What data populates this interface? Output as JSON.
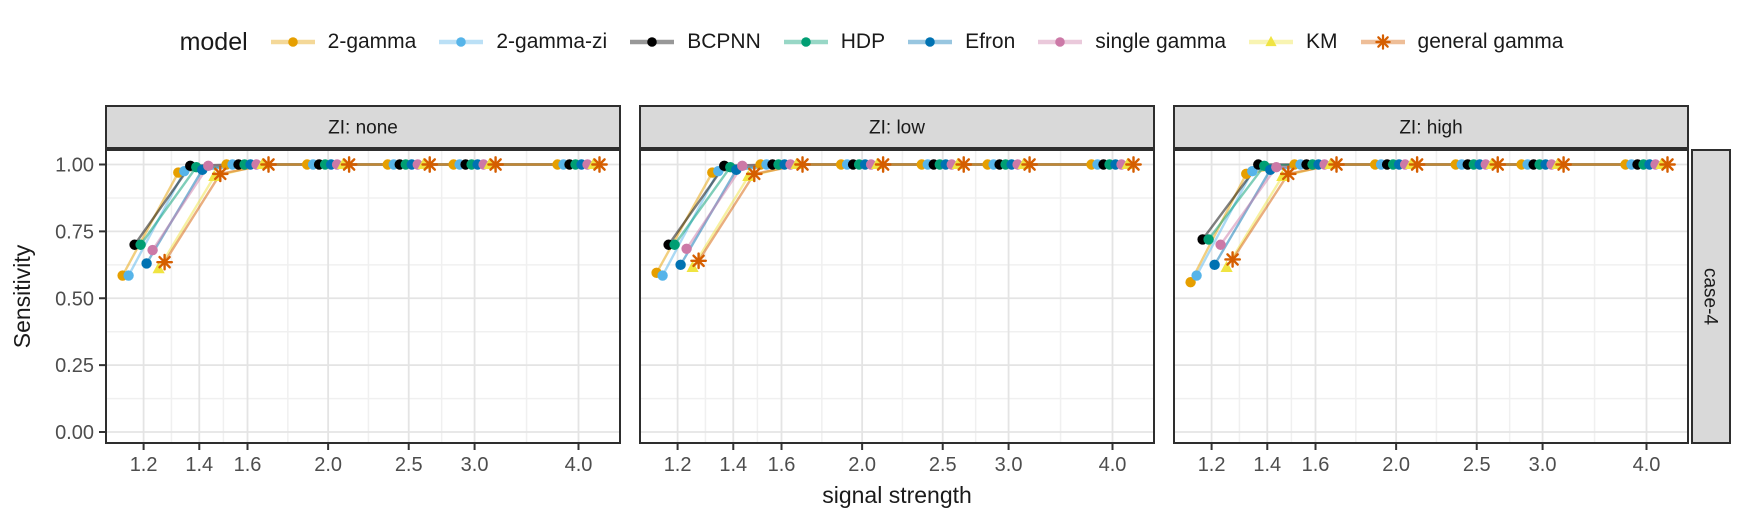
{
  "legend": {
    "title": "model",
    "entries": [
      {
        "label": "2-gamma",
        "color": "#E69F00",
        "marker": "circle"
      },
      {
        "label": "2-gamma-zi",
        "color": "#56B4E9",
        "marker": "circle"
      },
      {
        "label": "BCPNN",
        "color": "#000000",
        "marker": "circle"
      },
      {
        "label": "HDP",
        "color": "#009E73",
        "marker": "circle"
      },
      {
        "label": "Efron",
        "color": "#0072B2",
        "marker": "circle"
      },
      {
        "label": "single gamma",
        "color": "#CC79A7",
        "marker": "circle"
      },
      {
        "label": "KM",
        "color": "#F0E442",
        "marker": "triangle"
      },
      {
        "label": "general gamma",
        "color": "#D55E00",
        "marker": "asterisk"
      }
    ]
  },
  "chart_data": {
    "type": "line",
    "x_scale": "log",
    "x": [
      1.2,
      1.4,
      1.6,
      2.0,
      2.5,
      3.0,
      4.0
    ],
    "x_ticks": [
      1.2,
      1.4,
      1.6,
      2.0,
      2.5,
      3.0,
      4.0
    ],
    "y_ticks": [
      0.0,
      0.25,
      0.5,
      0.75,
      1.0
    ],
    "ylim": [
      0,
      1
    ],
    "xlabel": "signal strength",
    "ylabel": "Sensitivity",
    "facet_row_label": "case-4",
    "legend_position": "top",
    "grid": true,
    "facets": [
      {
        "label": "ZI: none",
        "series": [
          {
            "name": "2-gamma",
            "values": [
              0.585,
              0.97,
              1,
              1,
              1,
              1,
              1
            ]
          },
          {
            "name": "2-gamma-zi",
            "values": [
              0.585,
              0.975,
              1,
              1,
              1,
              1,
              1
            ]
          },
          {
            "name": "BCPNN",
            "values": [
              0.7,
              0.995,
              1,
              1,
              1,
              1,
              1
            ]
          },
          {
            "name": "HDP",
            "values": [
              0.7,
              0.99,
              1,
              1,
              1,
              1,
              1
            ]
          },
          {
            "name": "Efron",
            "values": [
              0.63,
              0.98,
              1,
              1,
              1,
              1,
              1
            ]
          },
          {
            "name": "single gamma",
            "values": [
              0.68,
              0.995,
              1,
              1,
              1,
              1,
              1
            ]
          },
          {
            "name": "KM",
            "values": [
              0.61,
              0.955,
              1,
              1,
              1,
              1,
              1
            ]
          },
          {
            "name": "general gamma",
            "values": [
              0.635,
              0.965,
              1,
              1,
              1,
              1,
              1
            ]
          }
        ]
      },
      {
        "label": "ZI: low",
        "series": [
          {
            "name": "2-gamma",
            "values": [
              0.595,
              0.97,
              1,
              1,
              1,
              1,
              1
            ]
          },
          {
            "name": "2-gamma-zi",
            "values": [
              0.585,
              0.975,
              1,
              1,
              1,
              1,
              1
            ]
          },
          {
            "name": "BCPNN",
            "values": [
              0.7,
              0.995,
              1,
              1,
              1,
              1,
              1
            ]
          },
          {
            "name": "HDP",
            "values": [
              0.7,
              0.99,
              1,
              1,
              1,
              1,
              1
            ]
          },
          {
            "name": "Efron",
            "values": [
              0.625,
              0.98,
              1,
              1,
              1,
              1,
              1
            ]
          },
          {
            "name": "single gamma",
            "values": [
              0.685,
              0.995,
              1,
              1,
              1,
              1,
              1
            ]
          },
          {
            "name": "KM",
            "values": [
              0.615,
              0.955,
              1,
              1,
              1,
              1,
              1
            ]
          },
          {
            "name": "general gamma",
            "values": [
              0.64,
              0.965,
              1,
              1,
              1,
              1,
              1
            ]
          }
        ]
      },
      {
        "label": "ZI: high",
        "series": [
          {
            "name": "2-gamma",
            "values": [
              0.56,
              0.965,
              1,
              1,
              1,
              1,
              1
            ]
          },
          {
            "name": "2-gamma-zi",
            "values": [
              0.585,
              0.975,
              1,
              1,
              1,
              1,
              1
            ]
          },
          {
            "name": "BCPNN",
            "values": [
              0.72,
              1.0,
              1,
              1,
              1,
              1,
              1
            ]
          },
          {
            "name": "HDP",
            "values": [
              0.72,
              0.995,
              1,
              1,
              1,
              1,
              1
            ]
          },
          {
            "name": "Efron",
            "values": [
              0.625,
              0.98,
              1,
              1,
              1,
              1,
              1
            ]
          },
          {
            "name": "single gamma",
            "values": [
              0.7,
              0.99,
              1,
              1,
              1,
              1,
              1
            ]
          },
          {
            "name": "KM",
            "values": [
              0.615,
              0.955,
              1,
              1,
              1,
              1,
              1
            ]
          },
          {
            "name": "general gamma",
            "values": [
              0.645,
              0.965,
              1,
              1,
              1,
              1,
              1
            ]
          }
        ]
      }
    ],
    "colors": {
      "strip_bg": "#D9D9D9",
      "panel_border": "#2e2e2e",
      "grid_major": "#E4E4E4",
      "grid_minor": "#F0F0F0",
      "tick_label": "#4D4D4D",
      "axis_title": "#1a1a1a"
    }
  }
}
